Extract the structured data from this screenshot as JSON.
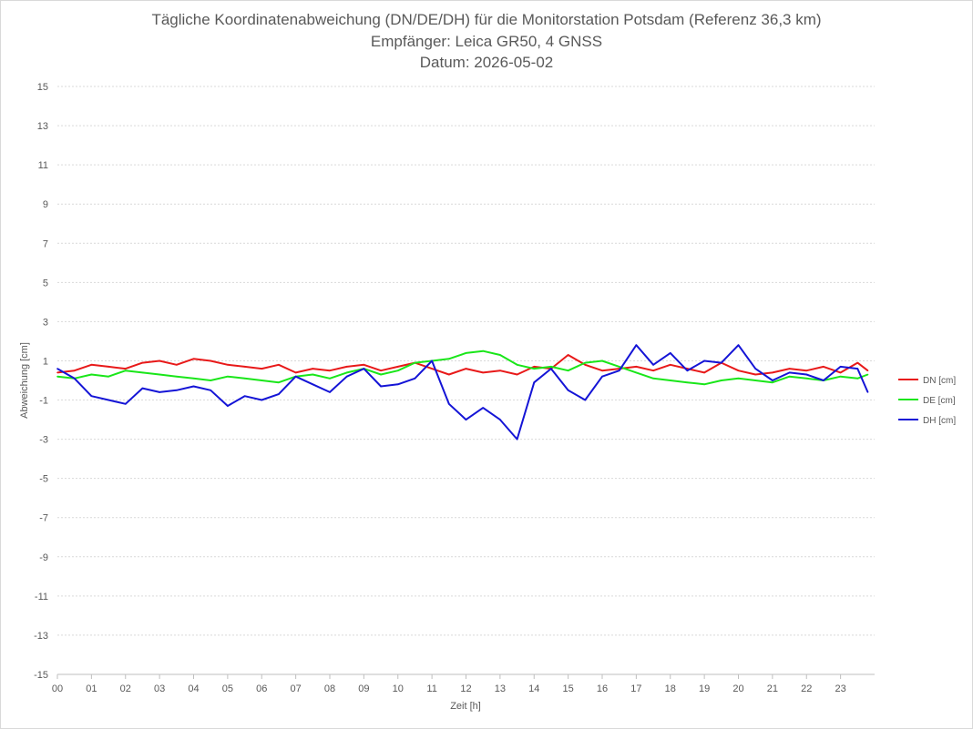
{
  "chart_data": {
    "type": "line",
    "title": [
      "Tägliche Koordinatenabweichung (DN/DE/DH) für die Monitorstation Potsdam (Referenz 36,3 km)",
      "Empfänger: Leica GR50, 4 GNSS",
      "Datum: 2026-05-02"
    ],
    "xlabel": "Zeit [h]",
    "ylabel": "Abweichung [cm]",
    "xlim": [
      0,
      24
    ],
    "ylim": [
      -15,
      15
    ],
    "y_ticks": [
      "15",
      "13",
      "11",
      "9",
      "7",
      "5",
      "3",
      "1",
      "-1",
      "-3",
      "-5",
      "-7",
      "-9",
      "-11",
      "-13",
      "-15"
    ],
    "x_ticks": [
      "00",
      "01",
      "02",
      "03",
      "04",
      "05",
      "06",
      "07",
      "08",
      "09",
      "10",
      "11",
      "12",
      "13",
      "14",
      "15",
      "16",
      "17",
      "18",
      "19",
      "20",
      "21",
      "22",
      "23"
    ],
    "grid": "horizontal dotted",
    "legend_position": "right",
    "series": [
      {
        "name": "DN [cm]",
        "color": "#e81919",
        "x": [
          0,
          0.5,
          1,
          1.5,
          2,
          2.5,
          3,
          3.5,
          4,
          4.5,
          5,
          5.5,
          6,
          6.5,
          7,
          7.5,
          8,
          8.5,
          9,
          9.5,
          10,
          10.5,
          11,
          11.5,
          12,
          12.5,
          13,
          13.5,
          14,
          14.5,
          15,
          15.5,
          16,
          16.5,
          17,
          17.5,
          18,
          18.5,
          19,
          19.5,
          20,
          20.5,
          21,
          21.5,
          22,
          22.5,
          23,
          23.5,
          23.8
        ],
        "values": [
          0.4,
          0.5,
          0.8,
          0.7,
          0.6,
          0.9,
          1.0,
          0.8,
          1.1,
          1.0,
          0.8,
          0.7,
          0.6,
          0.8,
          0.4,
          0.6,
          0.5,
          0.7,
          0.8,
          0.5,
          0.7,
          0.9,
          0.6,
          0.3,
          0.6,
          0.4,
          0.5,
          0.3,
          0.7,
          0.6,
          1.3,
          0.8,
          0.5,
          0.6,
          0.7,
          0.5,
          0.8,
          0.6,
          0.4,
          0.9,
          0.5,
          0.3,
          0.4,
          0.6,
          0.5,
          0.7,
          0.4,
          0.9,
          0.5
        ]
      },
      {
        "name": "DE [cm]",
        "color": "#19e619",
        "x": [
          0,
          0.5,
          1,
          1.5,
          2,
          2.5,
          3,
          3.5,
          4,
          4.5,
          5,
          5.5,
          6,
          6.5,
          7,
          7.5,
          8,
          8.5,
          9,
          9.5,
          10,
          10.5,
          11,
          11.5,
          12,
          12.5,
          13,
          13.5,
          14,
          14.5,
          15,
          15.5,
          16,
          16.5,
          17,
          17.5,
          18,
          18.5,
          19,
          19.5,
          20,
          20.5,
          21,
          21.5,
          22,
          22.5,
          23,
          23.5,
          23.8
        ],
        "values": [
          0.2,
          0.1,
          0.3,
          0.2,
          0.5,
          0.4,
          0.3,
          0.2,
          0.1,
          0.0,
          0.2,
          0.1,
          0.0,
          -0.1,
          0.2,
          0.3,
          0.1,
          0.4,
          0.6,
          0.3,
          0.5,
          0.9,
          1.0,
          1.1,
          1.4,
          1.5,
          1.3,
          0.8,
          0.6,
          0.7,
          0.5,
          0.9,
          1.0,
          0.7,
          0.4,
          0.1,
          0.0,
          -0.1,
          -0.2,
          0.0,
          0.1,
          0.0,
          -0.1,
          0.2,
          0.1,
          0.0,
          0.2,
          0.1,
          0.3
        ]
      },
      {
        "name": "DH [cm]",
        "color": "#1414d6",
        "x": [
          0,
          0.5,
          1,
          1.5,
          2,
          2.5,
          3,
          3.5,
          4,
          4.5,
          5,
          5.5,
          6,
          6.5,
          7,
          7.5,
          8,
          8.5,
          9,
          9.5,
          10,
          10.5,
          11,
          11.5,
          12,
          12.5,
          13,
          13.5,
          14,
          14.5,
          15,
          15.5,
          16,
          16.5,
          17,
          17.5,
          18,
          18.5,
          19,
          19.5,
          20,
          20.5,
          21,
          21.5,
          22,
          22.5,
          23,
          23.5,
          23.8
        ],
        "values": [
          0.6,
          0.1,
          -0.8,
          -1.0,
          -1.2,
          -0.4,
          -0.6,
          -0.5,
          -0.3,
          -0.5,
          -1.3,
          -0.8,
          -1.0,
          -0.7,
          0.2,
          -0.2,
          -0.6,
          0.2,
          0.6,
          -0.3,
          -0.2,
          0.1,
          1.0,
          -1.2,
          -2.0,
          -1.4,
          -2.0,
          -3.0,
          -0.1,
          0.6,
          -0.5,
          -1.0,
          0.2,
          0.5,
          1.8,
          0.8,
          1.4,
          0.5,
          1.0,
          0.9,
          1.8,
          0.6,
          0.0,
          0.4,
          0.3,
          0.0,
          0.7,
          0.6,
          -0.6
        ]
      }
    ]
  }
}
